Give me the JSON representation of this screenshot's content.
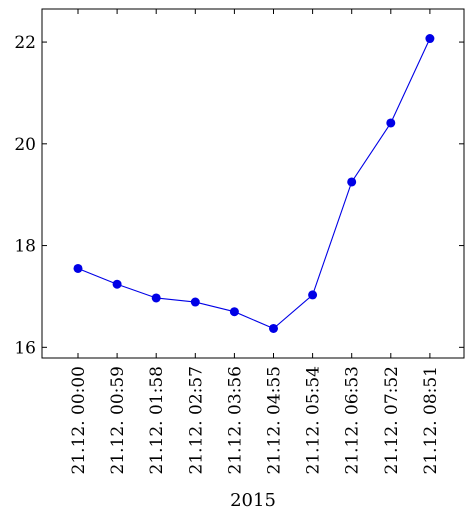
{
  "chart_data": {
    "type": "line",
    "title": "",
    "xlabel": "2015",
    "ylabel": "",
    "categories": [
      "21.12. 00:00",
      "21.12. 00:59",
      "21.12. 01:58",
      "21.12. 02:57",
      "21.12. 03:56",
      "21.12. 04:55",
      "21.12. 05:54",
      "21.12. 06:53",
      "21.12. 07:52",
      "21.12. 08:51"
    ],
    "series": [
      {
        "values": [
          17.55,
          17.24,
          16.97,
          16.89,
          16.7,
          16.37,
          17.03,
          19.25,
          20.41,
          22.07
        ],
        "color": "#0000e6",
        "marker": "circle"
      }
    ],
    "ylim": [
      15.79,
      22.65
    ],
    "yticks": [
      16,
      18,
      20,
      22
    ],
    "grid": false,
    "legend": "none"
  }
}
